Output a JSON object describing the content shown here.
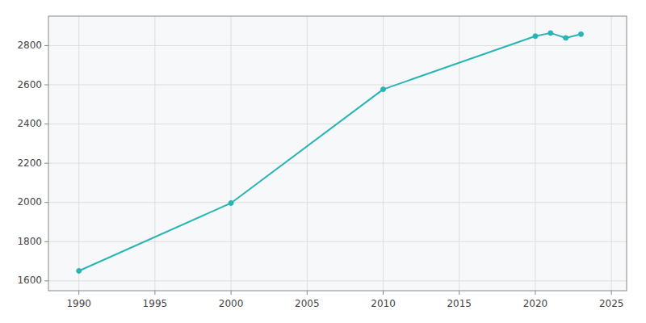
{
  "chart_data": {
    "type": "line",
    "x": [
      1990,
      2000,
      2010,
      2020,
      2021,
      2022,
      2023
    ],
    "values": [
      1651,
      1997,
      2577,
      2848,
      2864,
      2839,
      2858
    ],
    "color": "#2ab5b5",
    "marker": "circle",
    "xlim": [
      1988,
      2026
    ],
    "ylim": [
      1550,
      2950
    ],
    "xticks": [
      1990,
      1995,
      2000,
      2005,
      2010,
      2015,
      2020,
      2025
    ],
    "yticks": [
      1600,
      1800,
      2000,
      2200,
      2400,
      2600,
      2800
    ],
    "grid": true
  }
}
